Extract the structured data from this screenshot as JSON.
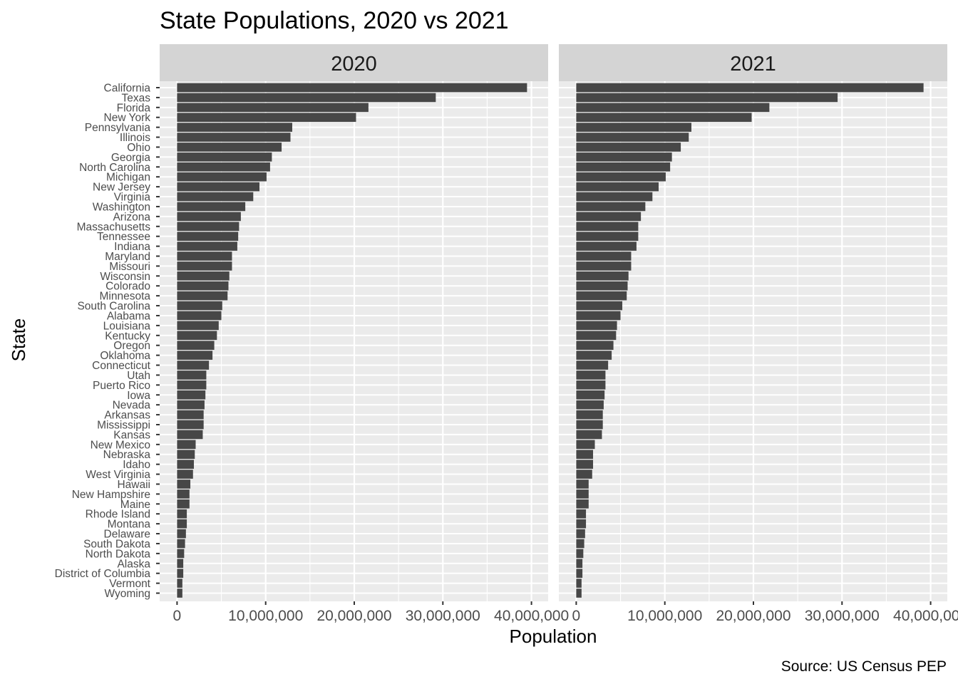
{
  "chart_data": {
    "type": "bar",
    "orientation": "horizontal",
    "title": "State Populations, 2020 vs 2021",
    "xlabel": "Population",
    "ylabel": "State",
    "caption": "Source: US Census PEP",
    "xlim": [
      0,
      41000000
    ],
    "x_ticks": [
      0,
      10000000,
      20000000,
      30000000,
      40000000
    ],
    "x_tick_labels": [
      "0",
      "10,000,000",
      "20,000,000",
      "30,000,000",
      "40,000,000"
    ],
    "grid": true,
    "legend": "none",
    "bar_color": "#474747",
    "panel_background": "#ebebeb",
    "strip_background": "#d4d4d4",
    "categories": [
      "California",
      "Texas",
      "Florida",
      "New York",
      "Pennsylvania",
      "Illinois",
      "Ohio",
      "Georgia",
      "North Carolina",
      "Michigan",
      "New Jersey",
      "Virginia",
      "Washington",
      "Arizona",
      "Massachusetts",
      "Tennessee",
      "Indiana",
      "Maryland",
      "Missouri",
      "Wisconsin",
      "Colorado",
      "Minnesota",
      "South Carolina",
      "Alabama",
      "Louisiana",
      "Kentucky",
      "Oregon",
      "Oklahoma",
      "Connecticut",
      "Utah",
      "Puerto Rico",
      "Iowa",
      "Nevada",
      "Arkansas",
      "Mississippi",
      "Kansas",
      "New Mexico",
      "Nebraska",
      "Idaho",
      "West Virginia",
      "Hawaii",
      "New Hampshire",
      "Maine",
      "Rhode Island",
      "Montana",
      "Delaware",
      "South Dakota",
      "North Dakota",
      "Alaska",
      "District of Columbia",
      "Vermont",
      "Wyoming"
    ],
    "series": [
      {
        "name": "2020",
        "values": [
          39500000,
          29200000,
          21600000,
          20200000,
          13000000,
          12800000,
          11800000,
          10700000,
          10500000,
          10100000,
          9300000,
          8600000,
          7700000,
          7200000,
          7000000,
          6900000,
          6800000,
          6200000,
          6200000,
          5900000,
          5800000,
          5700000,
          5100000,
          5000000,
          4700000,
          4500000,
          4200000,
          4000000,
          3600000,
          3300000,
          3300000,
          3200000,
          3100000,
          3000000,
          3000000,
          2900000,
          2100000,
          2000000,
          1900000,
          1800000,
          1500000,
          1400000,
          1400000,
          1100000,
          1100000,
          1000000,
          900000,
          800000,
          700000,
          700000,
          600000,
          600000
        ]
      },
      {
        "name": "2021",
        "values": [
          39200000,
          29500000,
          21800000,
          19800000,
          13000000,
          12700000,
          11800000,
          10800000,
          10600000,
          10100000,
          9300000,
          8600000,
          7800000,
          7300000,
          7000000,
          7000000,
          6800000,
          6200000,
          6200000,
          5900000,
          5800000,
          5700000,
          5200000,
          5000000,
          4600000,
          4500000,
          4200000,
          4000000,
          3600000,
          3300000,
          3300000,
          3200000,
          3100000,
          3000000,
          3000000,
          2900000,
          2100000,
          1900000,
          1900000,
          1800000,
          1400000,
          1400000,
          1400000,
          1100000,
          1100000,
          1000000,
          900000,
          800000,
          700000,
          700000,
          600000,
          600000
        ]
      }
    ]
  }
}
